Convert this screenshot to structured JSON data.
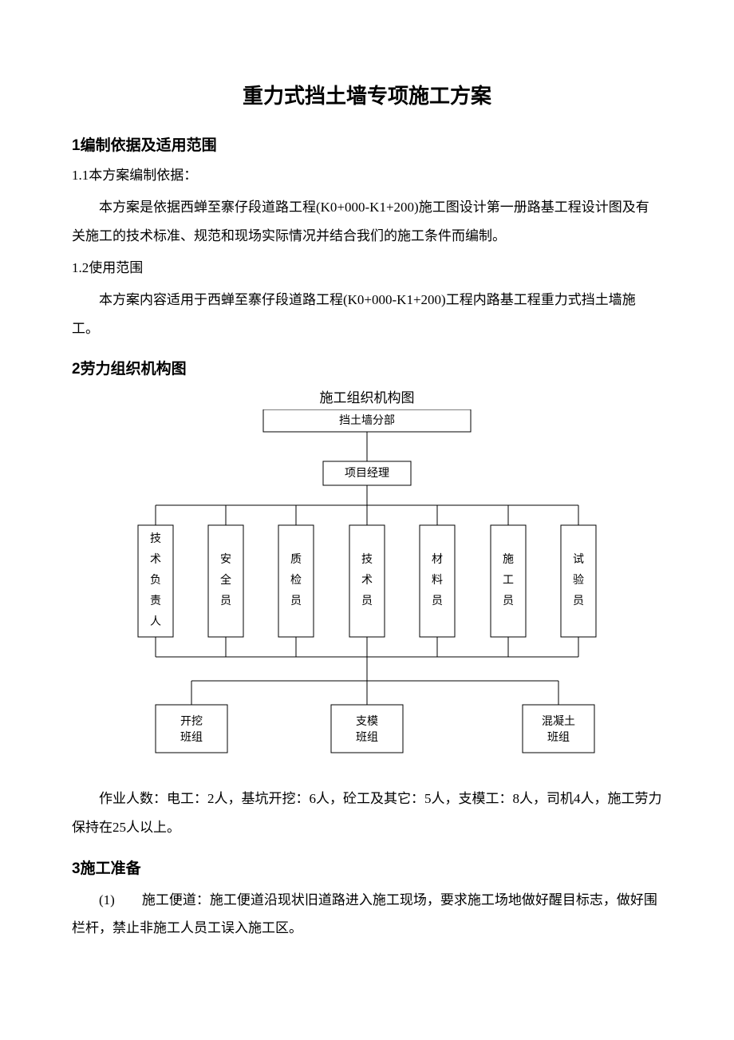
{
  "title": "重力式挡土墙专项施工方案",
  "s1": {
    "heading": "1编制依据及适用范围",
    "sub1": "1.1本方案编制依据：",
    "p1": "本方案是依据西蝉至寨仔段道路工程(K0+000-K1+200)施工图设计第一册路基工程设计图及有关施工的技术标准、规范和现场实际情况并结合我们的施工条件而编制。",
    "sub2": "1.2使用范围",
    "p2": "本方案内容适用于西蝉至寨仔段道路工程(K0+000-K1+200)工程内路基工程重力式挡土墙施工。"
  },
  "s2": {
    "heading": "2劳力组织机构图",
    "diagram": {
      "title": "施工组织机构图",
      "top": "挡土墙分部",
      "manager": "项目经理",
      "row2": [
        "技术负责人",
        "安全员",
        "质检员",
        "技术员",
        "材料员",
        "施工员",
        "试验员"
      ],
      "row3": [
        {
          "l1": "开挖",
          "l2": "班组"
        },
        {
          "l1": "支模",
          "l2": "班组"
        },
        {
          "l1": "混凝土",
          "l2": "班组"
        }
      ],
      "box_stroke": "#000000",
      "box_fill": "#ffffff",
      "line_color": "#000000",
      "fontsize": 14
    },
    "workers": "作业人数：电工：2人，基坑开挖：6人，砼工及其它：5人，支模工：8人，司机4人，施工劳力保持在25人以上。"
  },
  "s3": {
    "heading": "3施工准备",
    "item1": "(1)　　施工便道：施工便道沿现状旧道路进入施工现场，要求施工场地做好醒目标志，做好围栏杆，禁止非施工人员工误入施工区。"
  }
}
